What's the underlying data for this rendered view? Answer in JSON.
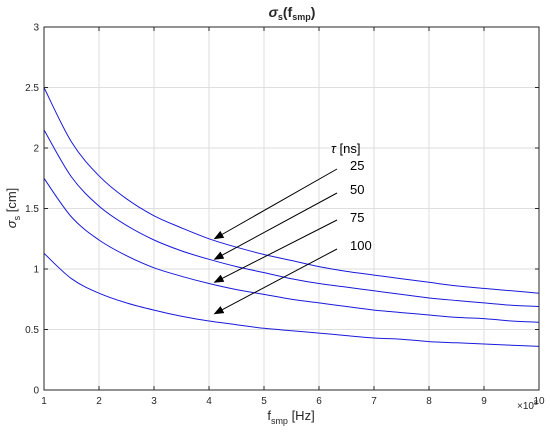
{
  "chart_data": {
    "type": "line",
    "title": {
      "main": "σ",
      "sub": "s",
      "open": "(f",
      "sub2": "smp",
      "close": ")"
    },
    "xlabel": {
      "main": "f",
      "sub": "smp",
      "rest": " [Hz]"
    },
    "ylabel": {
      "main": "σ",
      "sub": "s",
      "rest": " [cm]"
    },
    "x_multiplier": {
      "base": "×10",
      "exp": "8"
    },
    "xlim": [
      1,
      10
    ],
    "ylim": [
      0,
      3
    ],
    "xticks": [
      "1",
      "2",
      "3",
      "4",
      "5",
      "6",
      "7",
      "8",
      "9",
      "10"
    ],
    "yticks": [
      "0",
      "0.5",
      "1",
      "1.5",
      "2",
      "2.5",
      "3"
    ],
    "grid": true,
    "line_color": "#1a1adb",
    "x": [
      1,
      1.5,
      2,
      2.5,
      3,
      3.5,
      4,
      4.5,
      5,
      5.5,
      6,
      6.5,
      7,
      7.5,
      8,
      8.5,
      9,
      9.5,
      10
    ],
    "series": [
      {
        "tau": "25",
        "values": [
          2.5,
          2.05,
          1.77,
          1.58,
          1.44,
          1.34,
          1.25,
          1.18,
          1.12,
          1.07,
          1.02,
          0.98,
          0.95,
          0.92,
          0.89,
          0.86,
          0.84,
          0.82,
          0.8
        ]
      },
      {
        "tau": "50",
        "values": [
          2.15,
          1.76,
          1.52,
          1.36,
          1.24,
          1.15,
          1.08,
          1.02,
          0.97,
          0.92,
          0.88,
          0.85,
          0.82,
          0.79,
          0.76,
          0.74,
          0.72,
          0.7,
          0.69
        ]
      },
      {
        "tau": "75",
        "values": [
          1.75,
          1.43,
          1.24,
          1.11,
          1.01,
          0.94,
          0.88,
          0.83,
          0.79,
          0.75,
          0.72,
          0.69,
          0.66,
          0.64,
          0.62,
          0.6,
          0.59,
          0.57,
          0.56
        ]
      },
      {
        "tau": "100",
        "values": [
          1.13,
          0.92,
          0.8,
          0.72,
          0.66,
          0.61,
          0.57,
          0.54,
          0.51,
          0.49,
          0.47,
          0.45,
          0.43,
          0.42,
          0.4,
          0.39,
          0.38,
          0.37,
          0.36
        ]
      }
    ],
    "legend_title": {
      "symbol": "τ",
      "rest": " [ns]"
    },
    "annotations": [
      {
        "label": "25",
        "arrow_to": [
          4.1,
          1.25
        ]
      },
      {
        "label": "50",
        "arrow_to": [
          4.1,
          1.08
        ]
      },
      {
        "label": "75",
        "arrow_to": [
          4.1,
          0.89
        ]
      },
      {
        "label": "100",
        "arrow_to": [
          4.1,
          0.63
        ]
      }
    ]
  }
}
